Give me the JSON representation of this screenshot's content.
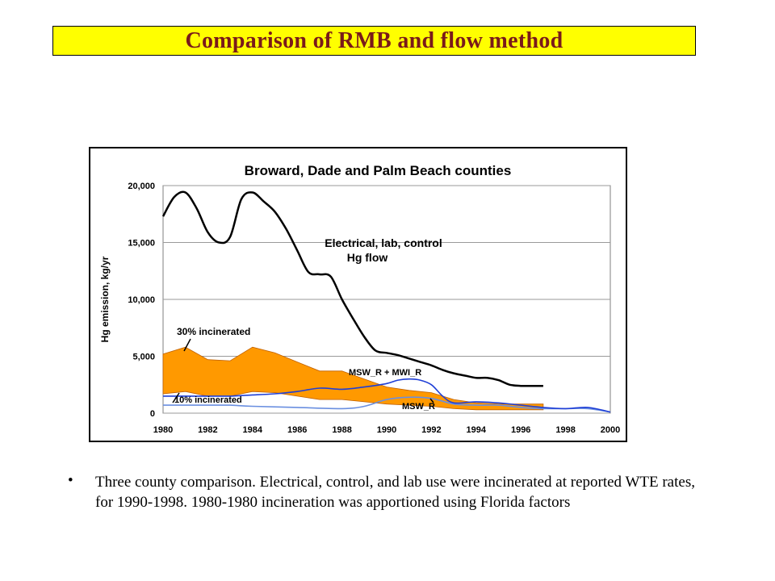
{
  "slide": {
    "title": "Comparison of RMB and flow method",
    "bullet": "Three county comparison. Electrical, control, and lab use were incinerated at reported WTE rates, for 1990-1998. 1980-1980 incineration was apportioned using Florida factors"
  },
  "colors": {
    "title_bg": "#ffff00",
    "title_text": "#7a1a1a",
    "band_fill": "#ff9900",
    "hg_flow": "#000000",
    "msw_mwi": "#1f3fd6",
    "msw": "#6a8fe0"
  },
  "chart_data": {
    "type": "line",
    "title": "Broward, Dade and Palm Beach counties",
    "xlabel": "",
    "ylabel": "Hg emission, kg/yr",
    "xlim": [
      1980,
      2000
    ],
    "ylim": [
      0,
      20000
    ],
    "x_ticks": [
      "1980",
      "1982",
      "1984",
      "1986",
      "1988",
      "1990",
      "1992",
      "1994",
      "1996",
      "1998",
      "2000"
    ],
    "y_ticks": [
      "0",
      "5,000",
      "10,000",
      "15,000",
      "20,000"
    ],
    "grid": "horizontal",
    "band": {
      "name_upper": "30% incinerated",
      "name_lower": "10% incinerated",
      "x": [
        1980,
        1981,
        1982,
        1983,
        1984,
        1985,
        1986,
        1987,
        1988,
        1989,
        1990,
        1991,
        1992,
        1993,
        1994,
        1995,
        1996,
        1997
      ],
      "upper": [
        5200,
        5800,
        4700,
        4600,
        5800,
        5300,
        4500,
        3700,
        3700,
        3000,
        2300,
        2000,
        1800,
        1200,
        900,
        800,
        800,
        800
      ],
      "lower": [
        1700,
        1900,
        1500,
        1500,
        1900,
        1800,
        1500,
        1200,
        1200,
        1000,
        800,
        700,
        600,
        400,
        300,
        300,
        300,
        300
      ]
    },
    "series": [
      {
        "name": "Electrical, lab, control\nHg flow",
        "x": [
          1980,
          1980.5,
          1981,
          1981.5,
          1982,
          1982.5,
          1983,
          1983.5,
          1984,
          1984.5,
          1985,
          1985.5,
          1986,
          1986.5,
          1987,
          1987.5,
          1988,
          1988.5,
          1989,
          1989.5,
          1990,
          1990.5,
          1991,
          1991.5,
          1992,
          1992.5,
          1993,
          1993.5,
          1994,
          1994.5,
          1995,
          1995.5,
          1996,
          1996.5,
          1997
        ],
        "values": [
          17300,
          19000,
          19400,
          18000,
          15900,
          15000,
          15500,
          18800,
          19400,
          18600,
          17700,
          16200,
          14300,
          12400,
          12200,
          12000,
          10000,
          8300,
          6700,
          5500,
          5300,
          5100,
          4800,
          4500,
          4200,
          3800,
          3500,
          3300,
          3100,
          3100,
          2900,
          2500,
          2400,
          2400,
          2400
        ]
      },
      {
        "name": "MSW_R + MWI_R",
        "x": [
          1980,
          1981,
          1982,
          1983,
          1984,
          1985,
          1986,
          1987,
          1988,
          1989,
          1990,
          1990.5,
          1991,
          1991.5,
          1992,
          1992.5,
          1993,
          1994,
          1995,
          1996,
          1997,
          1998,
          1999,
          2000
        ],
        "values": [
          1500,
          1500,
          1500,
          1500,
          1600,
          1700,
          1900,
          2200,
          2100,
          2300,
          2600,
          2900,
          3000,
          2900,
          2500,
          1500,
          900,
          1000,
          900,
          700,
          500,
          400,
          500,
          100
        ]
      },
      {
        "name": "MSW_R",
        "x": [
          1980,
          1982,
          1983,
          1984,
          1986,
          1988,
          1989,
          1990,
          1991,
          1992,
          1993,
          1994,
          1995,
          1996,
          1997,
          1998,
          1999,
          2000
        ],
        "values": [
          700,
          700,
          700,
          600,
          500,
          400,
          600,
          1200,
          1400,
          1300,
          800,
          700,
          700,
          500,
          400,
          400,
          400,
          100
        ]
      }
    ],
    "annotations": [
      "Electrical, lab, control",
      "Hg flow",
      "30% incinerated",
      "10% incinerated",
      "MSW_R + MWI_R",
      "MSW_R"
    ]
  }
}
